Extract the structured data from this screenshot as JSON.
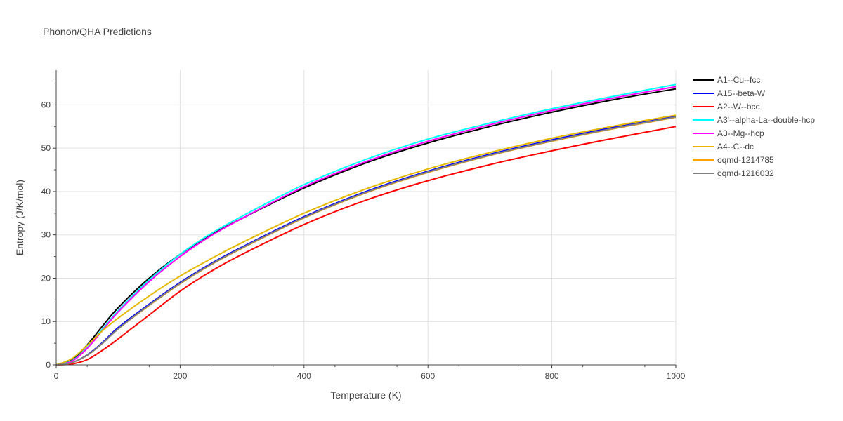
{
  "chart_data": {
    "type": "line",
    "title": "Phonon/QHA Predictions",
    "xlabel": "Temperature (K)",
    "ylabel": "Entropy (J/K/mol)",
    "xlim": [
      0,
      1000
    ],
    "ylim": [
      0,
      68
    ],
    "xticks": [
      0,
      200,
      400,
      600,
      800,
      1000
    ],
    "yticks": [
      0,
      10,
      20,
      30,
      40,
      50,
      60
    ],
    "grid": true,
    "legend_position": "right",
    "x": [
      0,
      25,
      50,
      75,
      100,
      150,
      200,
      250,
      300,
      400,
      500,
      600,
      700,
      800,
      900,
      1000
    ],
    "series": [
      {
        "name": "A1--Cu--fcc",
        "color": "#000000",
        "values": [
          0,
          1.2,
          4.6,
          9.0,
          13.2,
          20.0,
          25.5,
          30.0,
          33.8,
          40.8,
          46.6,
          51.2,
          55.0,
          58.3,
          61.2,
          63.7
        ]
      },
      {
        "name": "A15--beta-W",
        "color": "#0000ff",
        "values": [
          0,
          0.5,
          2.3,
          5.2,
          8.6,
          14.0,
          19.0,
          23.4,
          27.2,
          34.2,
          40.0,
          44.7,
          48.6,
          51.9,
          54.8,
          57.3
        ]
      },
      {
        "name": "A2--W--bcc",
        "color": "#ff0000",
        "values": [
          0,
          0.2,
          1.2,
          3.4,
          6.0,
          11.5,
          17.0,
          21.6,
          25.5,
          32.4,
          38.0,
          42.5,
          46.2,
          49.4,
          52.3,
          55.0
        ]
      },
      {
        "name": "A3'--alpha-La--double-hcp",
        "color": "#00ffff",
        "values": [
          0,
          0.9,
          4.0,
          8.3,
          12.5,
          19.6,
          25.5,
          30.3,
          34.3,
          41.6,
          47.4,
          52.1,
          55.8,
          59.1,
          62.0,
          64.7
        ]
      },
      {
        "name": "A3--Mg--hcp",
        "color": "#ff00ff",
        "values": [
          0,
          0.8,
          3.8,
          8.0,
          12.2,
          19.2,
          25.0,
          29.8,
          33.8,
          41.1,
          46.9,
          51.6,
          55.4,
          58.7,
          61.6,
          64.2
        ]
      },
      {
        "name": "A4--C--dc",
        "color": "#e6b800",
        "values": [
          0,
          1.4,
          4.5,
          7.9,
          10.8,
          15.9,
          20.5,
          24.5,
          28.2,
          35.0,
          40.6,
          45.2,
          49.0,
          52.3,
          55.1,
          57.6
        ]
      },
      {
        "name": "oqmd-1214785",
        "color": "#ffa500",
        "values": [
          0,
          0.5,
          2.2,
          5.0,
          8.3,
          13.7,
          18.7,
          23.1,
          26.9,
          33.9,
          39.7,
          44.4,
          48.3,
          51.6,
          54.5,
          57.1
        ]
      },
      {
        "name": "oqmd-1216032",
        "color": "#808080",
        "values": [
          0,
          0.5,
          2.2,
          5.0,
          8.3,
          13.8,
          18.8,
          23.2,
          27.0,
          34.0,
          39.8,
          44.5,
          48.4,
          51.7,
          54.6,
          57.2
        ]
      }
    ]
  }
}
